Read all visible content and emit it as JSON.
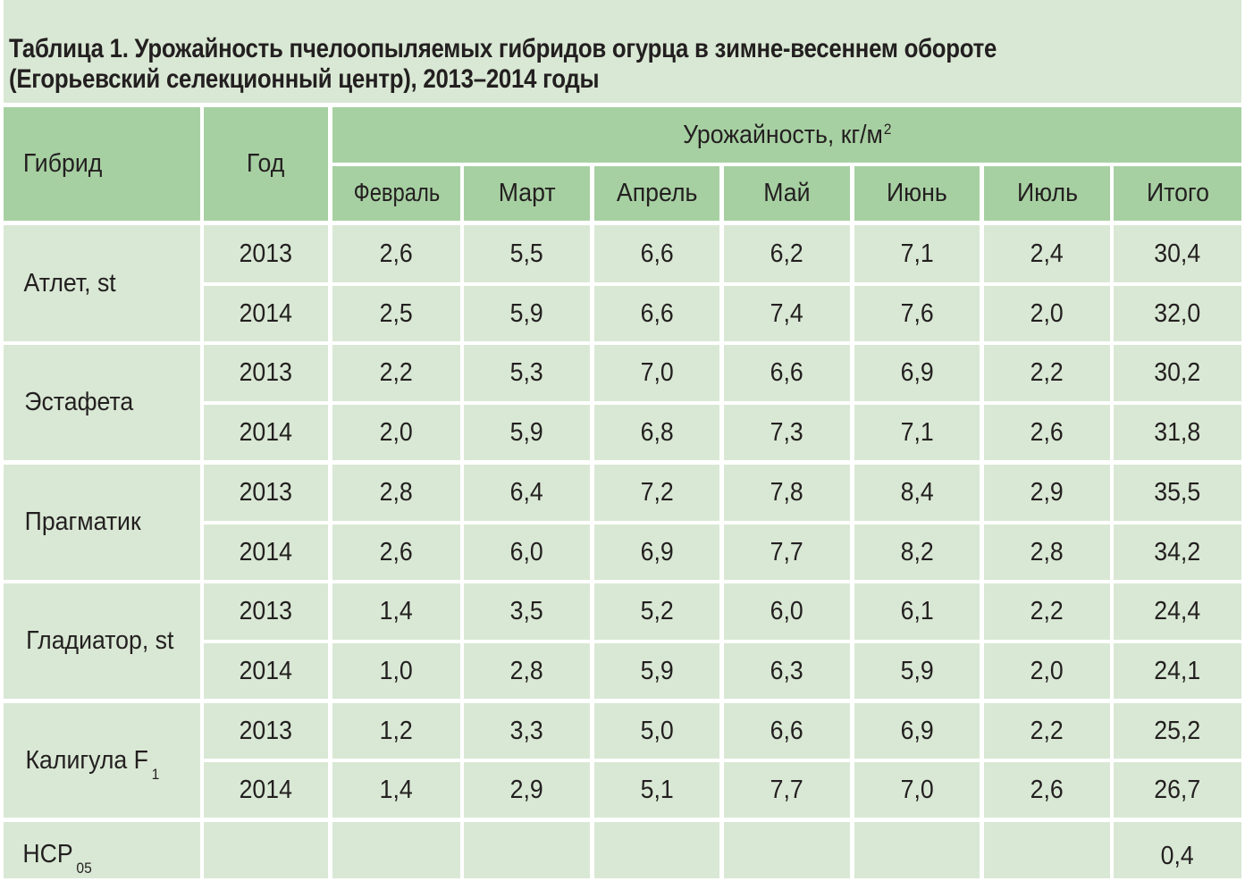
{
  "title": {
    "line1": "Таблица 1. Урожайность пчелоопыляемых гибридов огурца в зимне-весеннем обороте",
    "line2": "(Егорьевский селекционный центр), 2013–2014 годы"
  },
  "table": {
    "headers": {
      "hybrid": "Гибрид",
      "year": "Год",
      "yield_group": "Урожайность, кг/м",
      "yield_group_sup": "2",
      "months": [
        "Февраль",
        "Март",
        "Апрель",
        "Май",
        "Июнь",
        "Июль",
        "Итого"
      ]
    },
    "groups": [
      {
        "hybrid": "Атлет, st",
        "hybrid_sub": "",
        "rows": [
          {
            "year": "2013",
            "values": [
              "2,6",
              "5,5",
              "6,6",
              "6,2",
              "7,1",
              "2,4",
              "30,4"
            ]
          },
          {
            "year": "2014",
            "values": [
              "2,5",
              "5,9",
              "6,6",
              "7,4",
              "7,6",
              "2,0",
              "32,0"
            ]
          }
        ]
      },
      {
        "hybrid": "Эстафета",
        "hybrid_sub": "",
        "rows": [
          {
            "year": "2013",
            "values": [
              "2,2",
              "5,3",
              "7,0",
              "6,6",
              "6,9",
              "2,2",
              "30,2"
            ]
          },
          {
            "year": "2014",
            "values": [
              "2,0",
              "5,9",
              "6,8",
              "7,3",
              "7,1",
              "2,6",
              "31,8"
            ]
          }
        ]
      },
      {
        "hybrid": "Прагматик",
        "hybrid_sub": "",
        "rows": [
          {
            "year": "2013",
            "values": [
              "2,8",
              "6,4",
              "7,2",
              "7,8",
              "8,4",
              "2,9",
              "35,5"
            ]
          },
          {
            "year": "2014",
            "values": [
              "2,6",
              "6,0",
              "6,9",
              "7,7",
              "8,2",
              "2,8",
              "34,2"
            ]
          }
        ]
      },
      {
        "hybrid": "Гладиатор, st",
        "hybrid_sub": "",
        "rows": [
          {
            "year": "2013",
            "values": [
              "1,4",
              "3,5",
              "5,2",
              "6,0",
              "6,1",
              "2,2",
              "24,4"
            ]
          },
          {
            "year": "2014",
            "values": [
              "1,0",
              "2,8",
              "5,9",
              "6,3",
              "5,9",
              "2,0",
              "24,1"
            ]
          }
        ]
      },
      {
        "hybrid": "Калигула F",
        "hybrid_sub": "1",
        "rows": [
          {
            "year": "2013",
            "values": [
              "1,2",
              "3,3",
              "5,0",
              "6,6",
              "6,9",
              "2,2",
              "25,2"
            ]
          },
          {
            "year": "2014",
            "values": [
              "1,4",
              "2,9",
              "5,1",
              "7,7",
              "7,0",
              "2,6",
              "26,7"
            ]
          }
        ]
      }
    ],
    "footer": {
      "label": "НСР",
      "label_sub": "05",
      "year": "",
      "values": [
        "",
        "",
        "",
        "",
        "",
        "",
        "0,4"
      ]
    }
  },
  "colors": {
    "header_bg": "#a7d0a2",
    "body_bg": "#d9e8d4",
    "grid_gap": "#ffffff",
    "text": "#231f20"
  }
}
